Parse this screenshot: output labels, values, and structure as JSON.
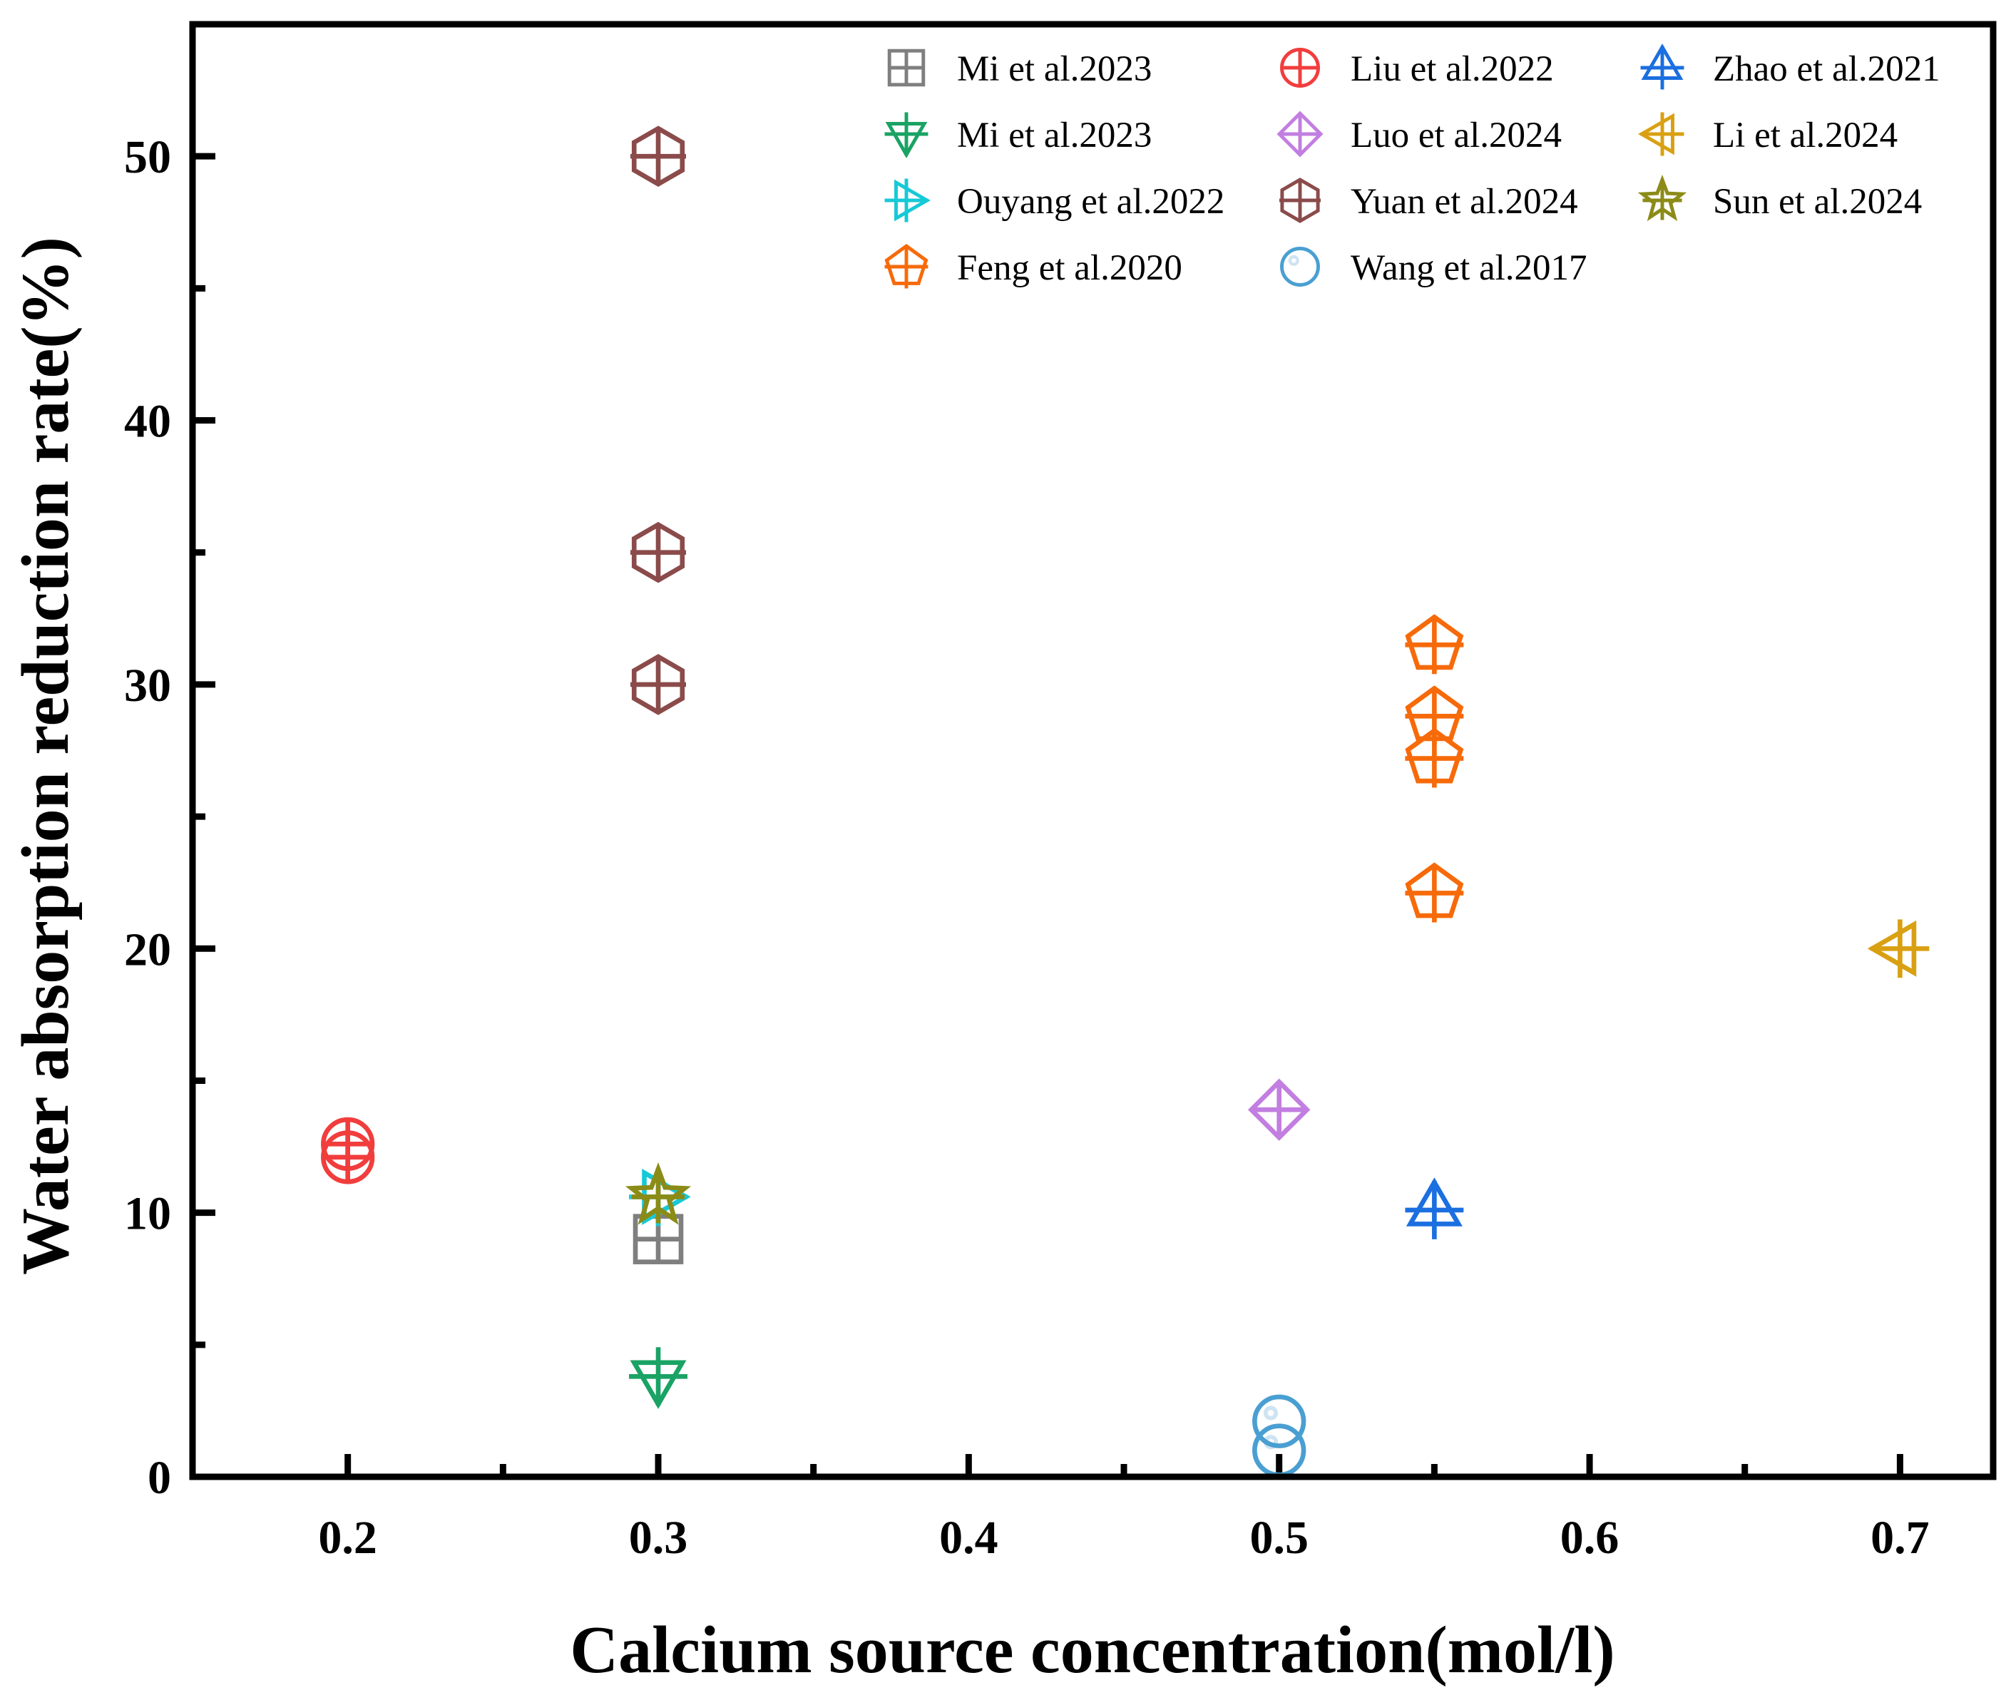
{
  "chart_data": {
    "type": "scatter",
    "xlabel": "Calcium source concentration(mol/l)",
    "ylabel": "Water absorption reduction rate(%)",
    "xlim": [
      0.15,
      0.73
    ],
    "ylim": [
      0,
      55
    ],
    "x_ticks": [
      {
        "v": 0.2,
        "label": "0.2"
      },
      {
        "v": 0.3,
        "label": "0.3"
      },
      {
        "v": 0.4,
        "label": "0.4"
      },
      {
        "v": 0.5,
        "label": "0.5"
      },
      {
        "v": 0.6,
        "label": "0.6"
      },
      {
        "v": 0.7,
        "label": "0.7"
      }
    ],
    "y_ticks": [
      {
        "v": 0,
        "label": "0"
      },
      {
        "v": 10,
        "label": "10"
      },
      {
        "v": 20,
        "label": "20"
      },
      {
        "v": 30,
        "label": "30"
      },
      {
        "v": 40,
        "label": "40"
      },
      {
        "v": 50,
        "label": "50"
      }
    ],
    "x_minor": [
      0.25,
      0.35,
      0.45,
      0.55,
      0.65
    ],
    "y_minor": [
      5,
      15,
      25,
      35,
      45
    ],
    "legend_position": "top-right",
    "series": [
      {
        "name": "Mi et al.2023",
        "marker": "square",
        "color": "#7f7f7f",
        "points": [
          [
            0.3,
            9.0
          ]
        ]
      },
      {
        "name": "Mi et al.2023",
        "marker": "triangle-down",
        "color": "#1aa364",
        "points": [
          [
            0.3,
            3.8
          ]
        ]
      },
      {
        "name": "Ouyang et al.2022",
        "marker": "triangle-right",
        "color": "#17c9d6",
        "points": [
          [
            0.3,
            10.6
          ]
        ]
      },
      {
        "name": "Feng et al.2020",
        "marker": "pentagon",
        "color": "#f76a0a",
        "points": [
          [
            0.55,
            31.5
          ],
          [
            0.55,
            28.8
          ],
          [
            0.55,
            27.2
          ],
          [
            0.55,
            22.1
          ]
        ]
      },
      {
        "name": "Liu et al.2022",
        "marker": "circle-plus",
        "color": "#f23d3d",
        "points": [
          [
            0.2,
            12.1
          ],
          [
            0.2,
            12.6
          ]
        ]
      },
      {
        "name": "Luo et al.2024",
        "marker": "diamond",
        "color": "#c27ee0",
        "points": [
          [
            0.5,
            13.9
          ]
        ]
      },
      {
        "name": "Yuan et al.2024",
        "marker": "hexagon",
        "color": "#8b4b4b",
        "points": [
          [
            0.3,
            50.0
          ],
          [
            0.3,
            35.0
          ],
          [
            0.3,
            30.0
          ]
        ]
      },
      {
        "name": "Wang et al.2017",
        "marker": "sphere",
        "color": "#4a9fd2",
        "points": [
          [
            0.5,
            1.0
          ],
          [
            0.5,
            2.1
          ]
        ]
      },
      {
        "name": "Zhao et al.2021",
        "marker": "triangle-up",
        "color": "#1b6fe0",
        "points": [
          [
            0.55,
            10.1
          ]
        ]
      },
      {
        "name": "Li et al.2024",
        "marker": "triangle-left",
        "color": "#d9a012",
        "points": [
          [
            0.7,
            20.0
          ]
        ]
      },
      {
        "name": "Sun et al.2024",
        "marker": "star",
        "color": "#8b8b17",
        "points": [
          [
            0.3,
            10.6
          ]
        ]
      }
    ]
  }
}
